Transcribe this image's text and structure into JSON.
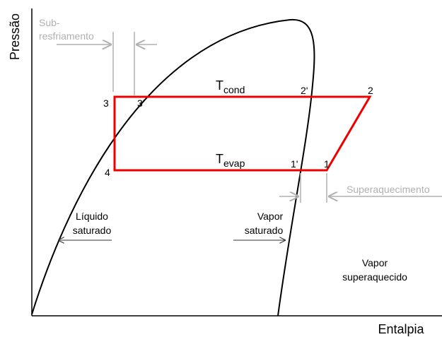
{
  "axes": {
    "y_label": "Pressão",
    "x_label": "Entalpia"
  },
  "annotations": {
    "subcooling": [
      "Sub-",
      "resfriamento"
    ],
    "superheating": "Superaquecimento",
    "saturated_liquid": [
      "Líquido",
      "saturado"
    ],
    "saturated_vapor": [
      "Vapor",
      "saturado"
    ],
    "superheated_vapor": [
      "Vapor",
      "superaquecido"
    ]
  },
  "temperatures": {
    "condensing": {
      "symbol": "T",
      "subscript": "cond"
    },
    "evaporating": {
      "symbol": "T",
      "subscript": "evap"
    }
  },
  "points": [
    "1",
    "1'",
    "2",
    "2'",
    "3",
    "3'",
    "4"
  ]
}
